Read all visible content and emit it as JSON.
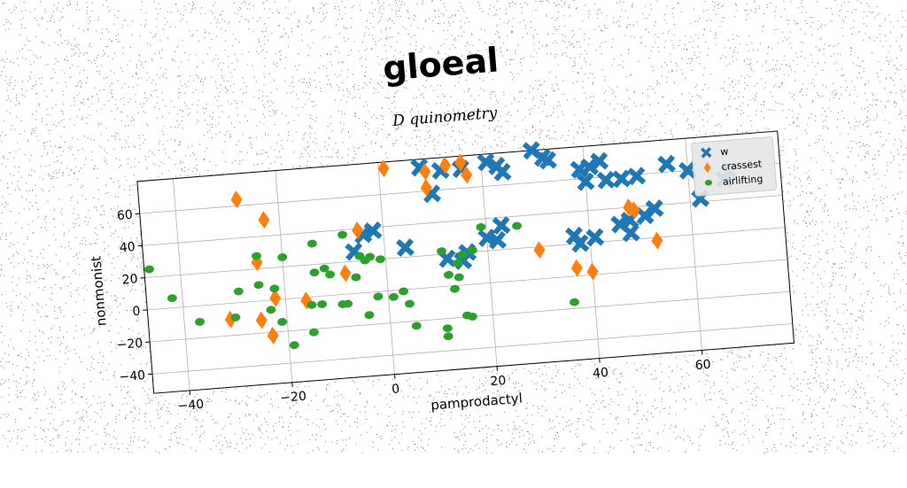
{
  "chart_data": {
    "type": "scatter",
    "title": "gloeal",
    "subtitle": "D quinometry",
    "xlabel": "pamprodactyl",
    "ylabel": "nonmonist",
    "xlim": [
      -47,
      78
    ],
    "ylim": [
      -52,
      80
    ],
    "xticks": [
      -40,
      -20,
      0,
      20,
      40,
      60
    ],
    "yticks": [
      -40,
      -20,
      0,
      20,
      40,
      60
    ],
    "xtick_labels": [
      "−40",
      "−20",
      "0",
      "20",
      "40",
      "60"
    ],
    "ytick_labels": [
      "−40",
      "−20",
      "0",
      "20",
      "40",
      "60"
    ],
    "grid": true,
    "legend_position": "top-right",
    "series": [
      {
        "name": "w",
        "marker": "x",
        "color": "#1f77b4",
        "points": [
          [
            8,
            75
          ],
          [
            12,
            72
          ],
          [
            10,
            58
          ],
          [
            16,
            72
          ],
          [
            23,
            72
          ],
          [
            21,
            75
          ],
          [
            24,
            68
          ],
          [
            30,
            80
          ],
          [
            32,
            75
          ],
          [
            33,
            73
          ],
          [
            39,
            66
          ],
          [
            41,
            67
          ],
          [
            43,
            70
          ],
          [
            40,
            58
          ],
          [
            44,
            58
          ],
          [
            47,
            58
          ],
          [
            50,
            59
          ],
          [
            56,
            65
          ],
          [
            60,
            60
          ],
          [
            68,
            57
          ],
          [
            67,
            53
          ],
          [
            62,
            42
          ],
          [
            53,
            38
          ],
          [
            51,
            34
          ],
          [
            48,
            32
          ],
          [
            46,
            30
          ],
          [
            48,
            24
          ],
          [
            41,
            23
          ],
          [
            37,
            25
          ],
          [
            38,
            20
          ],
          [
            23,
            35
          ],
          [
            20,
            28
          ],
          [
            22,
            26
          ],
          [
            16,
            20
          ],
          [
            15,
            15
          ],
          [
            12,
            17
          ],
          [
            4,
            26
          ],
          [
            -2,
            38
          ],
          [
            -4,
            36
          ],
          [
            -6,
            26
          ]
        ]
      },
      {
        "name": "crassest",
        "marker": "diamond",
        "color": "#ff7f0e",
        "points": [
          [
            -28,
            64
          ],
          [
            -23,
            50
          ],
          [
            1,
            76
          ],
          [
            9,
            72
          ],
          [
            9,
            62
          ],
          [
            13,
            75
          ],
          [
            16,
            76
          ],
          [
            17,
            68
          ],
          [
            -5,
            39
          ],
          [
            -25,
            24
          ],
          [
            -8,
            13
          ],
          [
            -22,
            1
          ],
          [
            -25,
            -12
          ],
          [
            -23,
            -22
          ],
          [
            -31,
            -10
          ],
          [
            -16,
            -2
          ],
          [
            30,
            18
          ],
          [
            37,
            5
          ],
          [
            40,
            2
          ],
          [
            48,
            40
          ],
          [
            49,
            38
          ],
          [
            53,
            18
          ]
        ]
      },
      {
        "name": "airlifting",
        "marker": "circle",
        "color": "#2ca02c",
        "points": [
          [
            -46,
            25
          ],
          [
            -42,
            6
          ],
          [
            -37,
            -10
          ],
          [
            -30,
            -9
          ],
          [
            -29,
            7
          ],
          [
            -25,
            10
          ],
          [
            -25,
            28
          ],
          [
            -20,
            26
          ],
          [
            -14,
            33
          ],
          [
            -8,
            37
          ],
          [
            -5,
            23
          ],
          [
            -4,
            20
          ],
          [
            -3,
            22
          ],
          [
            -12,
            17
          ],
          [
            -14,
            15
          ],
          [
            -11,
            13
          ],
          [
            -15,
            -5
          ],
          [
            -13,
            -5
          ],
          [
            -9,
            -6
          ],
          [
            -8,
            -6
          ],
          [
            -2,
            -3
          ],
          [
            1,
            -4
          ],
          [
            3,
            -1
          ],
          [
            4,
            -9
          ],
          [
            -4,
            -14
          ],
          [
            -15,
            -22
          ],
          [
            -19,
            -29
          ],
          [
            -21,
            -14
          ],
          [
            -23,
            -6
          ],
          [
            5,
            -23
          ],
          [
            11,
            -26
          ],
          [
            11,
            -31
          ],
          [
            12,
            7
          ],
          [
            13,
            -2
          ],
          [
            14,
            5
          ],
          [
            14,
            14
          ],
          [
            15,
            19
          ],
          [
            17,
            21
          ],
          [
            19,
            35
          ],
          [
            11,
            22
          ],
          [
            -6,
            10
          ],
          [
            -1,
            20
          ],
          [
            -22,
            7
          ],
          [
            26,
            34
          ],
          [
            15,
            -19
          ],
          [
            16,
            -20
          ],
          [
            36,
            -16
          ]
        ]
      }
    ]
  }
}
